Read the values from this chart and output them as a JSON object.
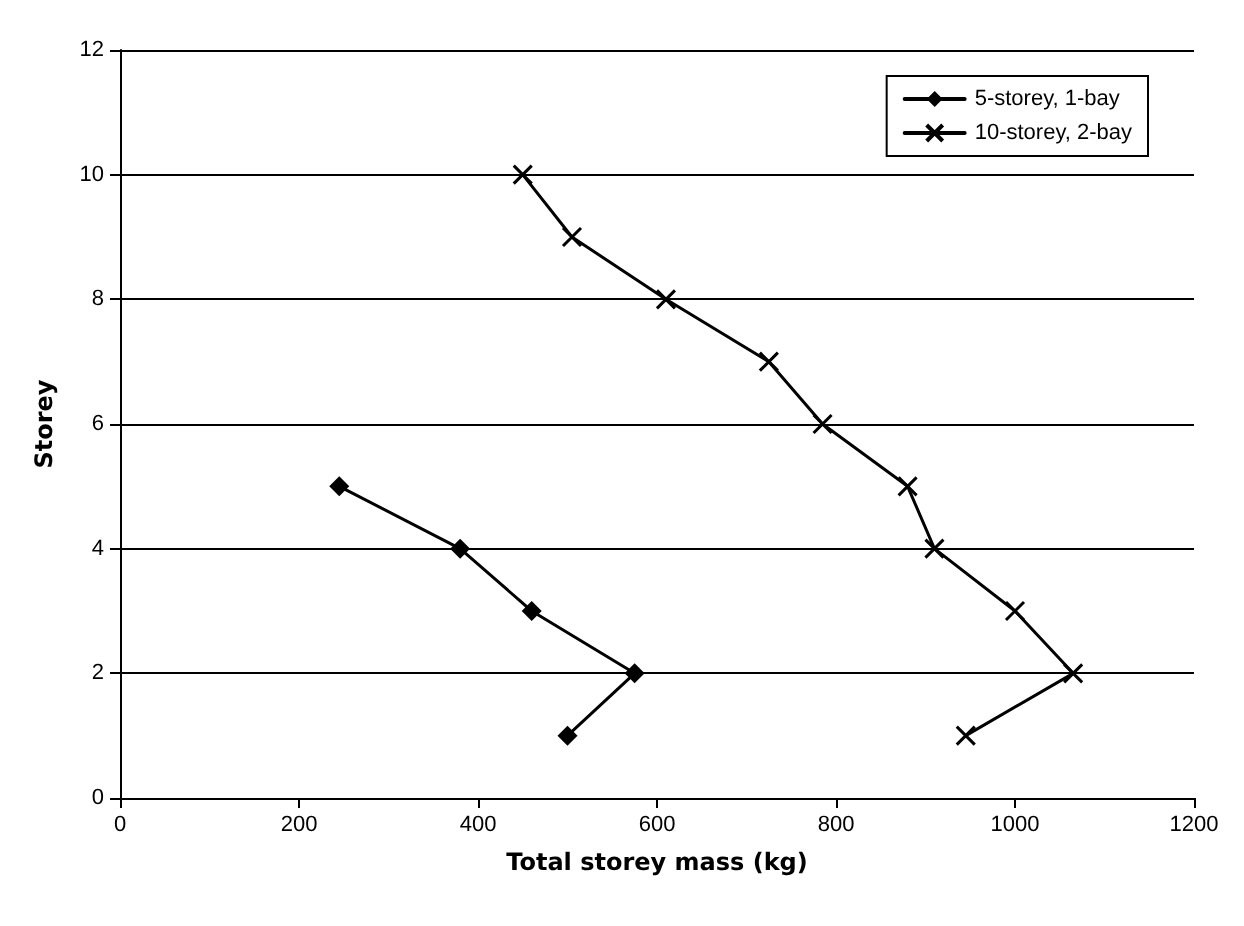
{
  "chart_data": {
    "type": "line",
    "xlabel": "Total storey mass (kg)",
    "ylabel": "Storey",
    "xlim": [
      0,
      1200
    ],
    "xticks": [
      0,
      200,
      400,
      600,
      800,
      1000,
      1200
    ],
    "ylim": [
      0,
      12
    ],
    "yticks": [
      0,
      2,
      4,
      6,
      8,
      10,
      12
    ],
    "grid": "y",
    "legend": "top right",
    "line_style": "solid",
    "series": [
      {
        "name": "5-storey, 1-bay",
        "color": "#000000",
        "marker": "diamond",
        "x": [
          500,
          575,
          460,
          380,
          245
        ],
        "values": [
          1,
          2,
          3,
          4,
          5
        ]
      },
      {
        "name": "10-storey, 2-bay",
        "color": "#000000",
        "marker": "cross",
        "x": [
          945,
          1065,
          1000,
          910,
          880,
          785,
          725,
          610,
          505,
          450
        ],
        "values": [
          1,
          2,
          3,
          4,
          5,
          6,
          7,
          8,
          9,
          10
        ]
      }
    ]
  }
}
